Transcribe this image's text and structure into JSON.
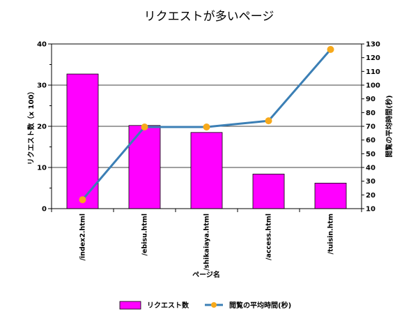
{
  "chart_data": {
    "type": "bar+line",
    "title": "リクエストが多いページ",
    "xlabel": "ページ名",
    "ylabel_left": "リクエスト数（x 100）",
    "ylabel_right": "閲覧の平均時間(秒)",
    "categories": [
      "/index2.html",
      "/ebisu.html",
      "/shikaiaya.html",
      "/access.html",
      "/tuisin.htm"
    ],
    "series": [
      {
        "name": "リクエスト数",
        "type": "bar",
        "axis": "left",
        "color": "#ff00ff",
        "values": [
          32.7,
          20.2,
          18.5,
          8.4,
          6.2
        ]
      },
      {
        "name": "閲覧の平均時間(秒)",
        "type": "line",
        "axis": "right",
        "color": "#3b7fb5",
        "marker_color": "#f7a91b",
        "values": [
          16.5,
          69.5,
          69.5,
          74,
          126
        ]
      }
    ],
    "ylim_left": [
      0,
      40
    ],
    "yticks_left": [
      0,
      10,
      20,
      30,
      40
    ],
    "ylim_right": [
      10,
      130
    ],
    "yticks_right": [
      10,
      20,
      30,
      40,
      50,
      60,
      70,
      80,
      90,
      100,
      110,
      120,
      130
    ],
    "grid": "horizontal at left major ticks",
    "legend_position": "bottom"
  }
}
